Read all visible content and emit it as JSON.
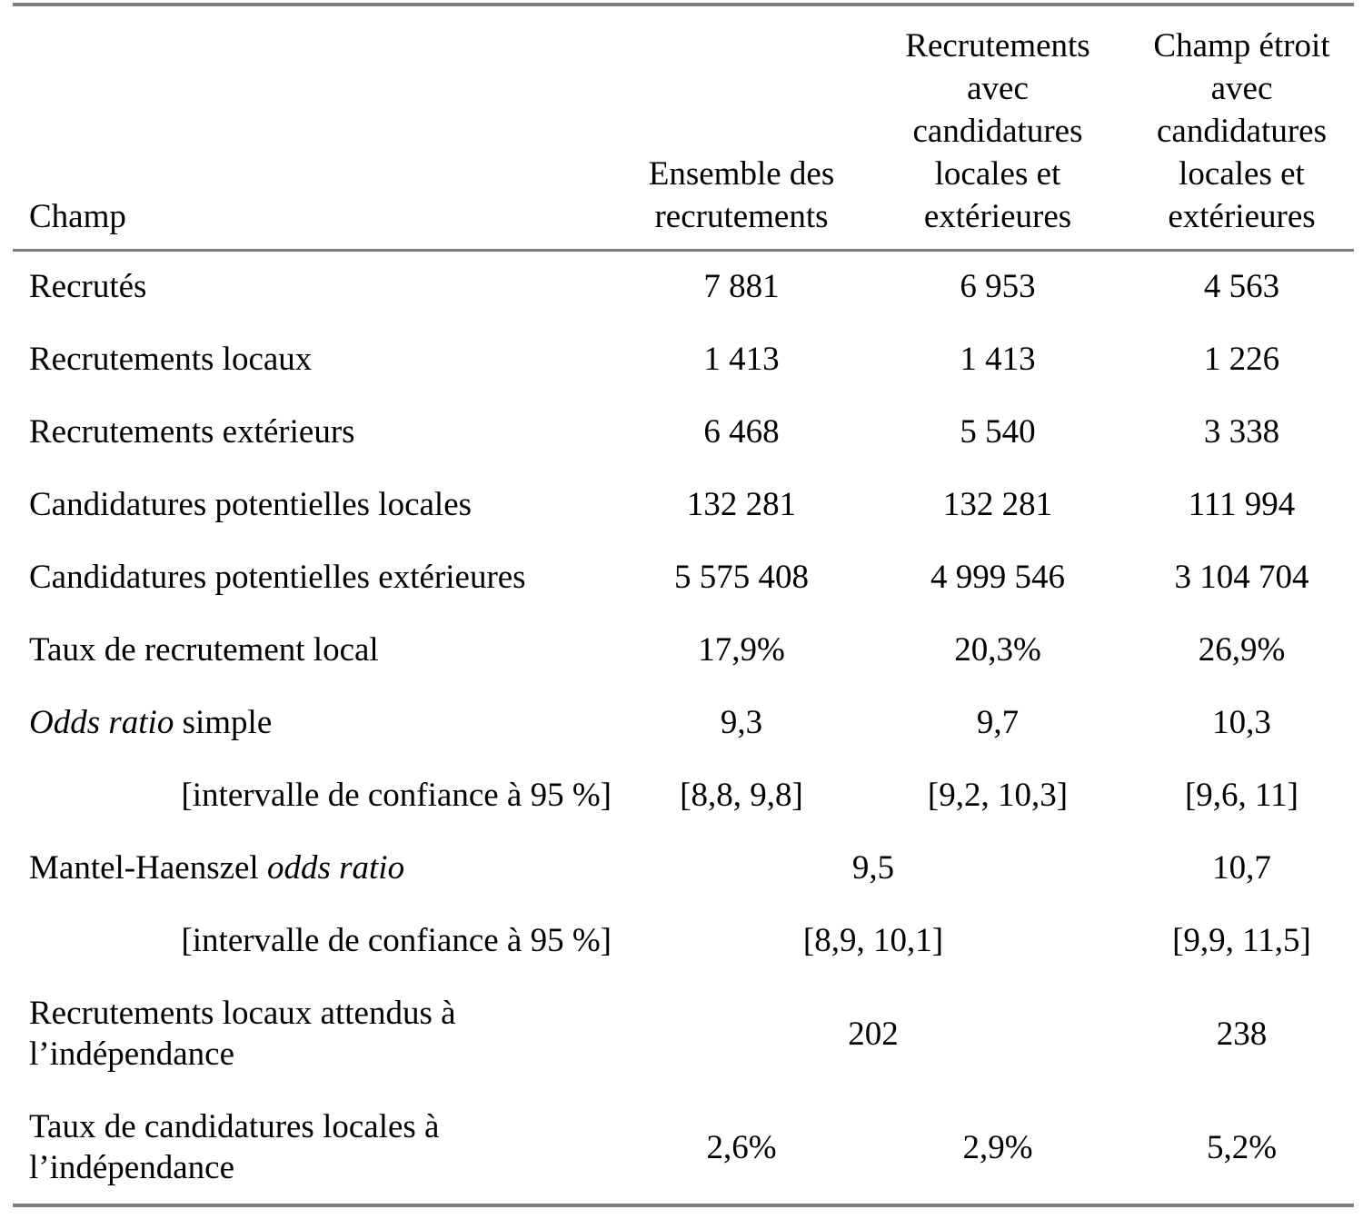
{
  "page": {
    "background_color": "#ffffff",
    "rule_color": "#7e7e7e",
    "text_color": "#000000"
  },
  "table": {
    "header": {
      "champ": "Champ",
      "ensemble": "Ensemble des\nrecrutements",
      "recrutements_avec": "Recrutements\navec\ncandidatures\nlocales et\nextérieures",
      "champ_etroit": "Champ étroit\navec\ncandidatures\nlocales et\nextérieures"
    },
    "rows": [
      {
        "label": "Recrutés",
        "v1": "7 881",
        "v2": "6 953",
        "v3": "4 563"
      },
      {
        "label": "Recrutements locaux",
        "v1": "1 413",
        "v2": "1 413",
        "v3": "1 226"
      },
      {
        "label": "Recrutements extérieurs",
        "v1": "6 468",
        "v2": "5 540",
        "v3": "3 338"
      },
      {
        "label": "Candidatures potentielles locales",
        "v1": "132 281",
        "v2": "132 281",
        "v3": "111 994"
      },
      {
        "label": "Candidatures potentielles extérieures",
        "v1": "5 575 408",
        "v2": "4 999 546",
        "v3": "3 104 704"
      },
      {
        "label": "Taux de recrutement local",
        "v1": "17,9%",
        "v2": "20,3%",
        "v3": "26,9%"
      },
      {
        "label_italic": "Odds ratio",
        "label_rest": " simple",
        "v1": "9,3",
        "v2": "9,7",
        "v3": "10,3"
      },
      {
        "label": "[intervalle de confiance à 95 %]",
        "v1": "[8,8, 9,8]",
        "v2": "[9,2, 10,3]",
        "v3": "[9,6, 11]"
      },
      {
        "label_normal": "Mantel-Haenszel ",
        "label_italic": "odds ratio",
        "v12": "9,5",
        "v3": "10,7"
      },
      {
        "label": "[intervalle de confiance à 95 %]",
        "v12": "[8,9, 10,1]",
        "v3": "[9,9, 11,5]"
      },
      {
        "label": "Recrutements locaux attendus à\nl’indépendance",
        "v12": "202",
        "v3": "238"
      },
      {
        "label": "Taux de candidatures locales à\nl’indépendance",
        "v1": "2,6%",
        "v2": "2,9%",
        "v3": "5,2%"
      }
    ]
  }
}
